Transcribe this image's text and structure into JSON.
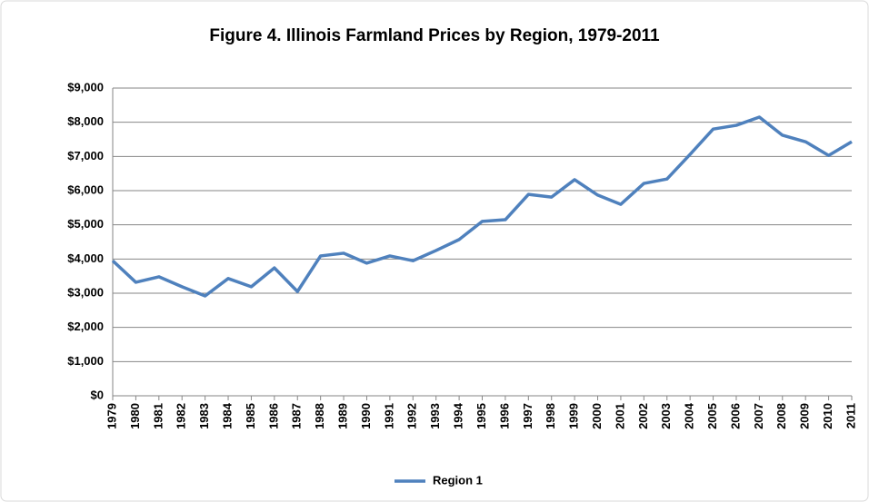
{
  "chart_data": {
    "type": "line",
    "title": "Figure 4. Illinois Farmland Prices by Region, 1979-2011",
    "categories": [
      "1979",
      "1980",
      "1981",
      "1982",
      "1983",
      "1984",
      "1985",
      "1986",
      "1987",
      "1988",
      "1989",
      "1990",
      "1991",
      "1992",
      "1993",
      "1994",
      "1995",
      "1996",
      "1997",
      "1998",
      "1999",
      "2000",
      "2001",
      "2002",
      "2003",
      "2004",
      "2005",
      "2006",
      "2007",
      "2008",
      "2009",
      "2010",
      "2011"
    ],
    "series": [
      {
        "name": "Region 1",
        "color": "#4f81bd",
        "values": [
          3950,
          3320,
          3480,
          3190,
          2920,
          3430,
          3190,
          3740,
          3050,
          4090,
          4170,
          3880,
          4090,
          3950,
          4250,
          4570,
          5100,
          5150,
          5890,
          5810,
          6320,
          5870,
          5600,
          6210,
          6340,
          7060,
          7800,
          7910,
          8150,
          7620,
          7430,
          7030,
          7430
        ]
      }
    ],
    "ylim": [
      0,
      9000
    ],
    "yticks": [
      {
        "value": 0,
        "label": "$0"
      },
      {
        "value": 1000,
        "label": "$1,000"
      },
      {
        "value": 2000,
        "label": "$2,000"
      },
      {
        "value": 3000,
        "label": "$3,000"
      },
      {
        "value": 4000,
        "label": "$4,000"
      },
      {
        "value": 5000,
        "label": "$5,000"
      },
      {
        "value": 6000,
        "label": "$6,000"
      },
      {
        "value": 7000,
        "label": "$7,000"
      },
      {
        "value": 8000,
        "label": "$8,000"
      },
      {
        "value": 9000,
        "label": "$9,000"
      }
    ],
    "grid": true,
    "legend": "bottom"
  }
}
